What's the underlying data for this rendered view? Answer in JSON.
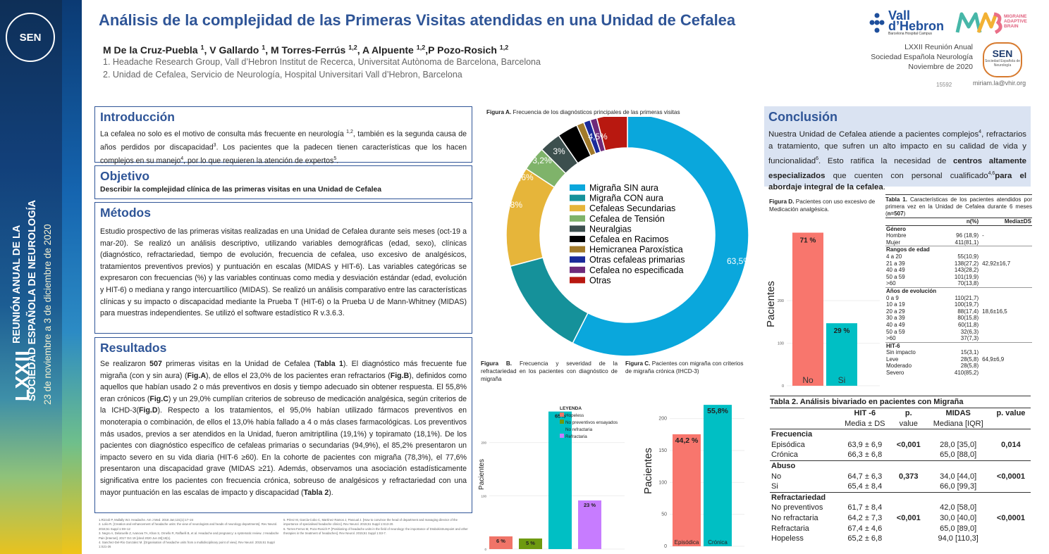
{
  "sidebar": {
    "badge": "SEN",
    "line1_big": "LXXII",
    "line1": "REUNIÓN ANUAL DE LA",
    "line2": "SOCIEDAD ESPAÑOLA DE NEUROLOGÍA",
    "line3": "23 de noviembre a 3 de diciembre de 2020"
  },
  "header": {
    "title": "Análisis de la complejidad de las Primeras Visitas atendidas en una Unidad de Cefalea",
    "authors": [
      {
        "name": "M De la Cruz-Puebla ",
        "sup": "1",
        "sep": ", "
      },
      {
        "name": "V Gallardo ",
        "sup": "1",
        "sep": ", "
      },
      {
        "name": "M Torres-Ferrús ",
        "sup": "1,2",
        "sep": ", "
      },
      {
        "name": "A Alpuente ",
        "sup": "1,2",
        "sep": ","
      },
      {
        "name": "P Pozo-Rosich ",
        "sup": "1,2",
        "sep": ""
      }
    ],
    "affiliation1": "1. Headache Research Group, Vall d’Hebron Institut de Recerca, Universitat Autònoma de Barcelona, Barcelona",
    "affiliation2": "2. Unidad de Cefalea, Servicio de Neurología, Hospital Universitari Vall d’Hebron, Barcelona",
    "logo_vh_1": "Vall",
    "logo_vh_2": "d’Hebron",
    "logo_vh_sub": "Barcelona Hospital Campus",
    "logo_mab": "MIGRAINE ADAPTIVE BRAIN",
    "meeting_1": "LXXII Reunión Anual",
    "meeting_2": "Sociedad Española Neurología",
    "meeting_3": "Noviembre de 2020",
    "sen_logo": "SEN",
    "sen_logo_sub": "Sociedad Española de Neurología",
    "email": "miriam.la@vhir.org",
    "code": "15592"
  },
  "intro": {
    "heading": "Introducción",
    "t1": "La cefalea no solo es el motivo de consulta más frecuente en neurología ",
    "s1": "1,2",
    "t2": ", también es la segunda causa de años perdidos por discapacidad",
    "s2": "3",
    "t3": ". Los pacientes que la padecen tienen características que los hacen complejos en su manejo",
    "s3": "4",
    "t4": ", por lo que requieren la atención de expertos",
    "s4": "5",
    "t5": "."
  },
  "objective": {
    "heading": "Objetivo",
    "text": "Describir la complejidad clínica de las primeras visitas en una Unidad de Cefalea"
  },
  "methods": {
    "heading": "Métodos",
    "text": "Estudio prospectivo de las primeras visitas realizadas en una Unidad de Cefalea durante seis meses (oct-19 a mar-20). Se realizó un análisis descriptivo, utilizando variables demográficas (edad, sexo), clínicas (diagnóstico, refractariedad, tiempo de evolución, frecuencia de cefalea, uso excesivo de analgésicos, tratamientos preventivos previos) y puntuación en escalas (MIDAS y HIT-6). Las variables categóricas se expresaron con frecuencias (%) y las variables continuas como media y desviación estándar (edad, evolución y HIT-6) o mediana y rango intercuartílico (MIDAS). Se realizó un análisis comparativo entre las características clínicas y su impacto o discapacidad mediante la Prueba T (HIT-6) o la Prueba U de Mann-Whitney (MIDAS) para muestras independientes. Se utilizó el software estadístico R v.3.6.3."
  },
  "results": {
    "heading": "Resultados",
    "p1": "Se realizaron ",
    "b1": "507",
    "p2": " primeras visitas en la Unidad de Cefalea (",
    "b2": "Tabla 1",
    "p3": "). El diagnóstico más frecuente fue migraña (con y sin aura) (",
    "b3": "Fig.A",
    "p4": "), de ellos el 23,0% de los pacientes eran refractarios (",
    "b4": "Fig.B",
    "p5": "), definidos como aquellos que habían usado 2 o más preventivos en dosis y tiempo adecuado sin obtener respuesta. El 55,8% eran crónicos (",
    "b5": "Fig.C",
    "p6": ") y un 29,0% cumplían criterios de sobreuso de medicación analgésica, según criterios de la ICHD-3(",
    "b6": "Fig.D",
    "p7": "). Respecto a los tratamientos, el 95,0% habían utilizado fármacos preventivos en monoterapia o combinación, de ellos el 13,0% había fallado a 4 o más clases farmacológicas. Los preventivos más usados, previos a ser atendidos en la Unidad, fueron amitriptilina (19,1%) y topiramato (18,1%). De los pacientes con diagnóstico específico de cefaleas primarias o secundarias (94,9%), el 85,2% presentaron un impacto severo en su vida diaria (HIT-6 ≥60). En la cohorte de pacientes con migraña (78,3%), el 77,6% presentaron una discapacidad grave (MIDAS ≥21). Además, observamos una asociación estadísticamente significativa entre los pacientes con frecuencia crónica, sobreuso de analgésicos y refractariedad con una mayor puntuación en las escalas de impacto y discapacidad (",
    "b7": "Tabla 2",
    "p8": ")."
  },
  "references": {
    "left": [
      "1.Rizzoli P, Mullally WJ. Headache. Am J Med. 2018 Jan;131(1):17–24",
      "2. Lolio R. [Creation and enhancement of headache units: the view of neurologists and heads of neurology departments]. Rev Neurol. 2015;61 Suppl 1:S9–12",
      "3. Negro A, Delaruelle Z, Ivanova TA, Khan S, Ornello R, Raffaelli B, et al. Headache and pregnancy: a systematic review. J Headache Pain [Internet]. 2017 Oct 19 [cited 2020 Jun 28];18(1).",
      "4. Sanchez-Del-Rio Gonzalez M. [Organisation of headache units from a multidisciplinary point of view]. Rev Neurol. 2015;61 Suppl 1:S21-26"
    ],
    "right": [
      "5. Pérez M, García-Cobo C, Martínez Ramos J, Pascual J. [How to convince the head of department and managing director of the importance of specialised headache clinics]. Rev Neurol. 2015;61 Suppl 1:S13-20.",
      "6. Torres-Ferrus M, Pozo-Rosich P. [Positioning of headache units in the field of neurology: the importance of Drabokistrumpoint and other therapies in the treatment of headaches]. Rev Neurol. 2015;61 Suppl 1:S3-7."
    ]
  },
  "figA": {
    "caption_bold": "Figura A.",
    "caption": " Frecuencia de los diagnósticos  principales de las primeras visitas"
  },
  "figB": {
    "caption_bold": "Figura B.",
    "caption": " Frecuencia y severidad de la refractariedad en los pacientes con diagnóstico de migraña"
  },
  "figC": {
    "caption_bold": "Figura C.",
    "caption": " Pacientes con migraña con criterios de migraña crónica (IHCD-3)"
  },
  "figD": {
    "caption_bold": "Figura D.",
    "caption": " Pacientes con uso excesivo de Medicación analgésica."
  },
  "conclusion": {
    "heading": "Conclusión",
    "t1": "Nuestra Unidad de Cefalea atiende a pacientes complejos",
    "s1": "4",
    "t2": ", refractarios a tratamiento, que sufren un alto impacto en su calidad de vida  y funcionalidad",
    "s2": "6",
    "t3": ". Esto ratifica la necesidad de ",
    "b1": "centros altamente especializados",
    "t4": " que cuenten con personal cualificado",
    "s3": "4,6",
    "b2": "para el abordaje integral de la cefalea",
    "t5": "."
  },
  "chart_data": [
    {
      "id": "A",
      "type": "pie",
      "labels": [
        "Migraña SIN aura",
        "Migraña CON aura",
        "Cefaleas Secundarias",
        "Cefalea de Tensión",
        "Neuralgias",
        "Cefalea en Racimos",
        "Hemicranea Paroxística",
        "Otras cefaleas primarias",
        "Cefalea no especificada",
        "Otras"
      ],
      "values": [
        63.5,
        14.8,
        14.8,
        3.6,
        3.2,
        3.0,
        1.1,
        1.0,
        1.0,
        4.5
      ],
      "value_labels": [
        "63,5%",
        "14,8%",
        "14,8%",
        "3,6%",
        "3,2%",
        "3%",
        "",
        "",
        "",
        "4,5%"
      ],
      "colors": [
        "#0aa7dc",
        "#15919a",
        "#e6b53a",
        "#7fb36a",
        "#3c4f4e",
        "#000000",
        "#a27a2a",
        "#1a2a9a",
        "#6e2a7a",
        "#b81810"
      ],
      "legend": "center"
    },
    {
      "id": "B",
      "type": "bar",
      "categories": [
        "Hopeless",
        "No preventivos ensayados",
        "No refractaria",
        "Refractaria"
      ],
      "values": [
        6,
        5,
        65,
        23
      ],
      "value_labels": [
        "6 %",
        "5 %",
        "65%",
        "23 %"
      ],
      "colors": [
        "#f07468",
        "#6e9a10",
        "#00bfc4",
        "#c77cff"
      ],
      "ylabel": "Pacientes",
      "yticks": [
        0,
        100,
        200
      ],
      "legend_title": "LEYENDA",
      "legend": "top-right"
    },
    {
      "id": "C",
      "type": "bar",
      "categories": [
        "Episódica",
        "Crónica"
      ],
      "values": [
        44.2,
        55.8
      ],
      "value_labels": [
        "44,2 %",
        "55,8%"
      ],
      "colors": [
        "#f8766d",
        "#00bfc4"
      ],
      "ylabel": "Pacientes",
      "yticks": [
        0,
        50,
        100,
        150,
        200
      ]
    },
    {
      "id": "D",
      "type": "bar",
      "categories": [
        "No",
        "Si"
      ],
      "values": [
        71,
        29
      ],
      "value_labels": [
        "71 %",
        "29 %"
      ],
      "colors": [
        "#f8766d",
        "#00bfc4"
      ],
      "ylabel": "Pacientes",
      "yticks": [
        0,
        100,
        200
      ]
    }
  ],
  "table1": {
    "caption_bold": "Tabla 1.",
    "caption": " Características de los pacientes atendidos por primera vez en la Unidad de Cefalea durante 6 meses (",
    "caption_n": "n=507",
    "caption_end": ")",
    "col1": "n(%)",
    "col2": "Media±DS",
    "sections": [
      {
        "title": "Género",
        "rows": [
          [
            "Hombre",
            "96 (18,9)",
            "-"
          ],
          [
            "Mujer",
            "411(81,1)",
            ""
          ]
        ]
      },
      {
        "title": "Rangos de edad",
        "rows": [
          [
            "4 a 20",
            "55(10,9)",
            ""
          ],
          [
            "21 a 39",
            "138(27,2)",
            "42,92±16,7"
          ],
          [
            "40 a 49",
            "143(28,2)",
            ""
          ],
          [
            "50 a 59",
            "101(19,9)",
            ""
          ],
          [
            ">60",
            "70(13,8)",
            ""
          ]
        ]
      },
      {
        "title": "Años de evolución",
        "rows": [
          [
            "0 a 9",
            "110(21,7)",
            ""
          ],
          [
            "10 a 19",
            "100(19,7)",
            ""
          ],
          [
            "20 a 29",
            "88(17,4)",
            "18,6±16,5"
          ],
          [
            "30 a 39",
            "80(15,8)",
            ""
          ],
          [
            "40 a 49",
            "60(11,8)",
            ""
          ],
          [
            "50 a 59",
            "32(6,3)",
            ""
          ],
          [
            ">60",
            "37(7,3)",
            ""
          ]
        ]
      },
      {
        "title": "HIT-6",
        "rows": [
          [
            "Sin impacto",
            "15(3,1)",
            ""
          ],
          [
            "Leve",
            "28(5,8)",
            "64,9±6,9"
          ],
          [
            "Moderado",
            "28(5,8)",
            ""
          ],
          [
            "Severo",
            "410(85,2)",
            ""
          ]
        ]
      }
    ]
  },
  "table2": {
    "caption": "Tabla 2. Análisis bivariado en pacientes con Migraña",
    "h1a": "HIT -6",
    "h1b": "Media ± DS",
    "h2a": "p.",
    "h2b": "value",
    "h3a": "MIDAS",
    "h3b": "Mediana [IQR]",
    "h4a": "p. value",
    "sections": [
      {
        "title": "Frecuencia",
        "rows": [
          [
            "Episódica",
            "63,9 ± 6,9",
            "<0,001",
            "28,0 [35,0]",
            "0,014"
          ],
          [
            "Crónica",
            "66,3 ± 6,8",
            "",
            "65,0 [88,0]",
            ""
          ]
        ]
      },
      {
        "title": "Abuso",
        "rows": [
          [
            "No",
            "64,7 ± 6,3",
            "0,373",
            "34,0 [44,0]",
            "<0,0001"
          ],
          [
            "Si",
            "65,4 ± 8,4",
            "",
            "66,0 [99,3]",
            ""
          ]
        ]
      },
      {
        "title": "Refractariedad",
        "rows": [
          [
            "No preventivos",
            "61,7 ± 8,4",
            "",
            "42,0 [58,0]",
            ""
          ],
          [
            "No refractaria",
            "64,2 ± 7,3",
            "<0,001",
            "30,0 [40,0]",
            "<0,0001"
          ],
          [
            "Refractaria",
            "67,4 ± 4,6",
            "",
            "65,0 [89,0]",
            ""
          ],
          [
            "Hopeless",
            "65,2 ± 6,8",
            "",
            "94,0 [110,3]",
            ""
          ]
        ]
      }
    ]
  }
}
